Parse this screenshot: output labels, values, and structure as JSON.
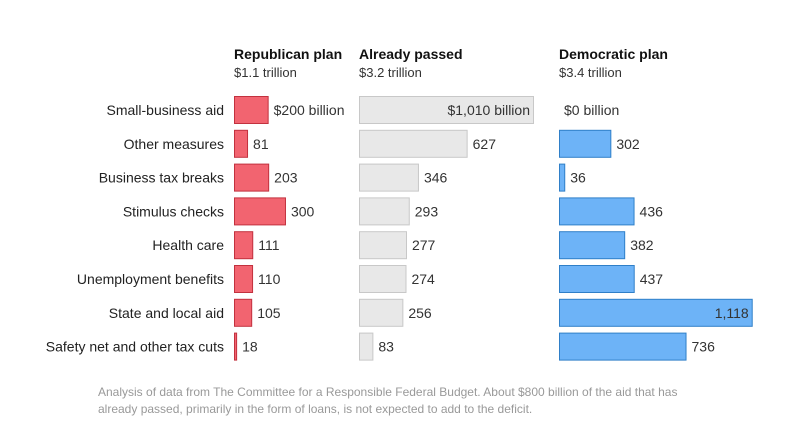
{
  "chart_data": {
    "type": "bar",
    "categories": [
      "Small-business aid",
      "Other measures",
      "Business tax breaks",
      "Stimulus checks",
      "Health care",
      "Unemployment benefits",
      "State and local aid",
      "Safety net and other tax cuts"
    ],
    "series": [
      {
        "name": "Republican plan",
        "subtitle": "$1.1 trillion",
        "values": [
          200,
          81,
          203,
          300,
          111,
          110,
          105,
          18
        ],
        "labels": [
          "$200 billion",
          "81",
          "203",
          "300",
          "111",
          "110",
          "105",
          "18"
        ],
        "color": "#f26470",
        "stroke": "#c2313e"
      },
      {
        "name": "Already passed",
        "subtitle": "$3.2 trillion",
        "values": [
          1010,
          627,
          346,
          293,
          277,
          274,
          256,
          83
        ],
        "labels": [
          "$1,010 billion",
          "627",
          "346",
          "293",
          "277",
          "274",
          "256",
          "83"
        ],
        "color": "#e8e8e8",
        "stroke": "#c8c8c8"
      },
      {
        "name": "Democratic plan",
        "subtitle": "$3.4 trillion",
        "values": [
          0,
          302,
          36,
          436,
          382,
          437,
          1118,
          736
        ],
        "labels": [
          "$0 billion",
          "302",
          "36",
          "436",
          "382",
          "437",
          "1,118",
          "736"
        ],
        "color": "#6db3f7",
        "stroke": "#2f7fc8"
      }
    ],
    "unit": "billion",
    "legend": "none",
    "grid": false
  },
  "note": "Analysis of data from The Committee for a Responsible Federal Budget. About $800 billion of the aid that has already passed, primarily in the form of loans, is not expected to add to the deficit."
}
